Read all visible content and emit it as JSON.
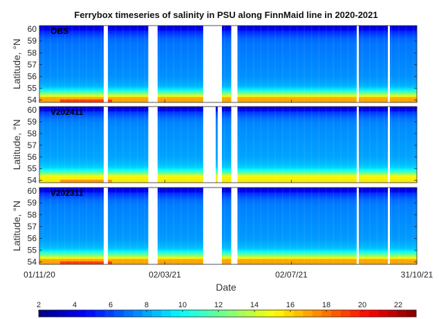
{
  "chart_data": {
    "type": "heatmap",
    "title": "Ferrybox timeseries of salinity in PSU along FinnMaid line in 2020-2021",
    "xlabel": "Date",
    "ylabel": "Latitude, °N",
    "x_ticks": [
      "01/11/20",
      "02/03/21",
      "02/07/21",
      "31/10/21"
    ],
    "x_tick_days": [
      0,
      121,
      243,
      364
    ],
    "x_range_days": [
      0,
      364
    ],
    "y_ticks": [
      54,
      55,
      56,
      57,
      58,
      59,
      60
    ],
    "ylim": [
      53.8,
      60.3
    ],
    "colorbar": {
      "ticks": [
        2,
        4,
        6,
        8,
        10,
        12,
        14,
        16,
        18,
        20,
        22
      ],
      "range": [
        2,
        23
      ],
      "colormap": "jet",
      "placement": "bottom"
    },
    "data_gaps_days": [
      [
        62,
        66
      ],
      [
        105,
        114
      ],
      [
        158,
        176
      ],
      [
        185,
        191
      ],
      [
        306,
        308
      ],
      [
        336,
        338
      ]
    ],
    "salinity_profile_by_latitude": {
      "latitude": [
        54.0,
        54.3,
        54.6,
        55.0,
        55.5,
        56.0,
        57.0,
        58.0,
        58.8,
        59.3,
        59.7,
        60.0,
        60.2
      ],
      "salinity": [
        17.0,
        15.0,
        12.0,
        8.6,
        8.0,
        7.6,
        7.4,
        7.2,
        7.0,
        6.6,
        5.6,
        4.8,
        4.2
      ]
    },
    "panels": [
      {
        "label": "OBS",
        "high_south_salinity": 20,
        "salinity_offset": 0.0,
        "gaps_days": [
          [
            62,
            66
          ],
          [
            105,
            114
          ],
          [
            158,
            176
          ],
          [
            185,
            191
          ],
          [
            306,
            308
          ],
          [
            336,
            338
          ]
        ]
      },
      {
        "label": "V202411",
        "high_south_salinity": 18,
        "salinity_offset": 0.4,
        "gaps_days": [
          [
            62,
            66
          ],
          [
            105,
            114
          ],
          [
            158,
            170
          ],
          [
            172,
            176
          ],
          [
            185,
            191
          ],
          [
            306,
            308
          ],
          [
            336,
            338
          ]
        ]
      },
      {
        "label": "V202311",
        "high_south_salinity": 20,
        "salinity_offset": 0.2,
        "gaps_days": [
          [
            62,
            66
          ],
          [
            105,
            114
          ],
          [
            158,
            176
          ],
          [
            185,
            191
          ],
          [
            306,
            308
          ],
          [
            336,
            338
          ]
        ]
      }
    ]
  }
}
